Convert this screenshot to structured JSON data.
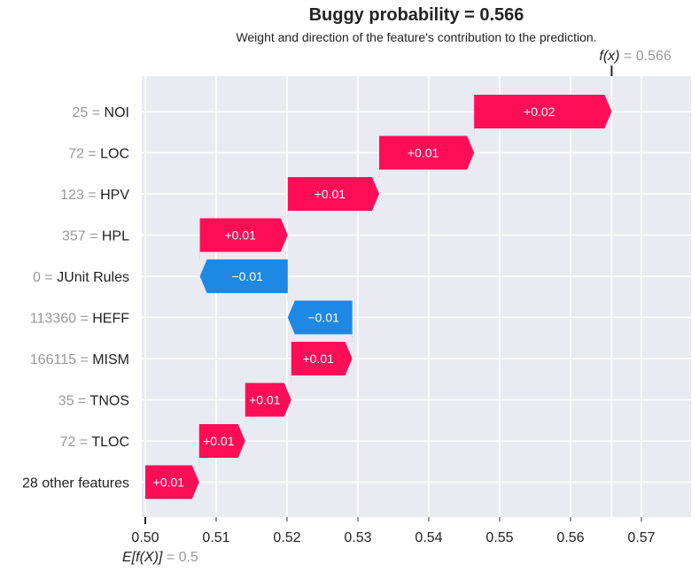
{
  "chart_data": {
    "type": "waterfall",
    "title": "Buggy probability = 0.566",
    "subtitle": "Weight and direction of the feature's contribution to the prediction.",
    "base_value": 0.5,
    "prediction": 0.5658,
    "fx_label": "f(x)",
    "fx_value_label": "= 0.566",
    "ex_label": "E[f(X)]",
    "ex_value_label": "= 0.5",
    "xlim": [
      0.4995,
      0.577
    ],
    "x_ticks": [
      0.5,
      0.51,
      0.52,
      0.53,
      0.54,
      0.55,
      0.56,
      0.57
    ],
    "x_tick_labels": [
      "0.50",
      "0.51",
      "0.52",
      "0.53",
      "0.54",
      "0.55",
      "0.56",
      "0.57"
    ],
    "grid": true,
    "features": [
      {
        "feature_value": "25",
        "name": "NOI",
        "start": 0.5464,
        "end": 0.5658,
        "label": "+0.02"
      },
      {
        "feature_value": "72",
        "name": "LOC",
        "start": 0.533,
        "end": 0.5464,
        "label": "+0.01"
      },
      {
        "feature_value": "123",
        "name": "HPV",
        "start": 0.5201,
        "end": 0.533,
        "label": "+0.01"
      },
      {
        "feature_value": "357",
        "name": "HPL",
        "start": 0.5077,
        "end": 0.5201,
        "label": "+0.01"
      },
      {
        "feature_value": "0",
        "name": "JUnit Rules",
        "start": 0.5201,
        "end": 0.5077,
        "label": "−0.01"
      },
      {
        "feature_value": "113360",
        "name": "HEFF",
        "start": 0.5292,
        "end": 0.5201,
        "label": "−0.01"
      },
      {
        "feature_value": "166115",
        "name": "MISM",
        "start": 0.5206,
        "end": 0.5292,
        "label": "+0.01"
      },
      {
        "feature_value": "35",
        "name": "TNOS",
        "start": 0.5141,
        "end": 0.5206,
        "label": "+0.01"
      },
      {
        "feature_value": "72",
        "name": "TLOC",
        "start": 0.5076,
        "end": 0.5141,
        "label": "+0.01"
      },
      {
        "feature_value": "",
        "name": "28 other features",
        "start": 0.5,
        "end": 0.5076,
        "label": "+0.01"
      }
    ],
    "colors": {
      "positive": "#ff0d57",
      "negative": "#1e88e5",
      "background": "#eaeaf2",
      "grid": "#ffffff",
      "muted_text": "#999999",
      "text": "#222222"
    }
  }
}
